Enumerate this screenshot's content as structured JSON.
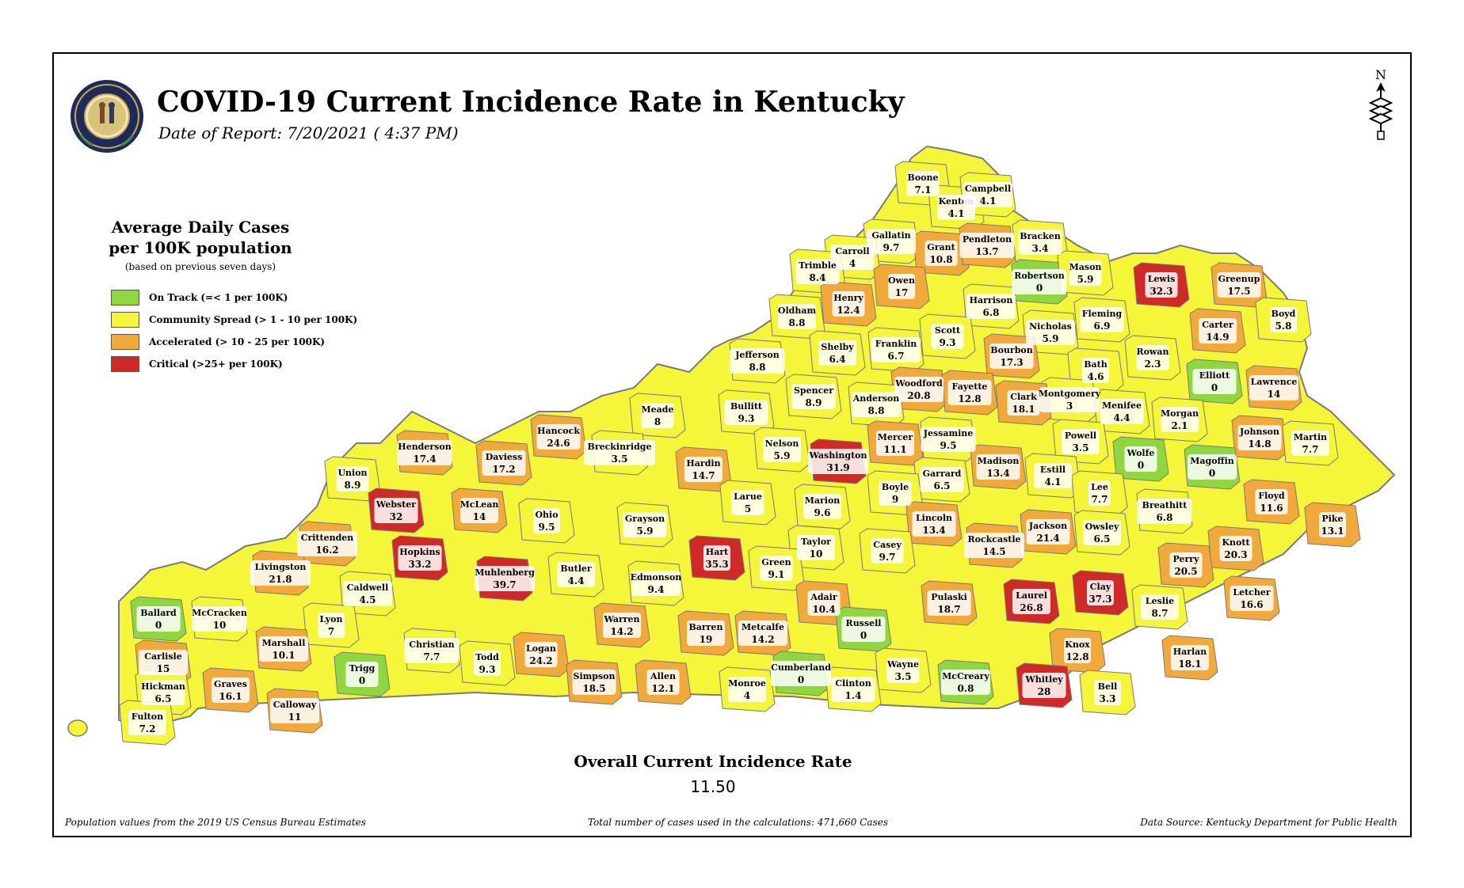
{
  "header": {
    "title": "COVID-19 Current Incidence Rate in Kentucky",
    "subtitle": "Date of Report: 7/20/2021 ( 4:37 PM)",
    "seal_text": "COMMONWEALTH OF KENTUCKY",
    "north_label": "N"
  },
  "legend": {
    "title_line1": "Average Daily Cases",
    "title_line2": "per 100K population",
    "note": "(based on previous seven days)",
    "items": [
      {
        "label": "On Track (=< 1 per 100K)",
        "color": "#8fd641"
      },
      {
        "label": "Community Spread (> 1 - 10 per 100K)",
        "color": "#f5f53a"
      },
      {
        "label": "Accelerated (> 10 - 25 per 100K)",
        "color": "#f2a93b"
      },
      {
        "label": "Critical (>25+ per 100K)",
        "color": "#cf2a27"
      }
    ]
  },
  "colors": {
    "on_track": "#8fd641",
    "community": "#f5f53a",
    "accelerated": "#f2a93b",
    "critical": "#cf2a27",
    "border": "#7a7a7a"
  },
  "counties": [
    {
      "name": "Boone",
      "value": "7.1"
    },
    {
      "name": "Kenton",
      "value": "4.1"
    },
    {
      "name": "Campbell",
      "value": "4.1"
    },
    {
      "name": "Gallatin",
      "value": "9.7"
    },
    {
      "name": "Grant",
      "value": "10.8"
    },
    {
      "name": "Pendleton",
      "value": "13.7"
    },
    {
      "name": "Bracken",
      "value": "3.4"
    },
    {
      "name": "Carroll",
      "value": "4"
    },
    {
      "name": "Trimble",
      "value": "8.4"
    },
    {
      "name": "Owen",
      "value": "17"
    },
    {
      "name": "Robertson",
      "value": "0"
    },
    {
      "name": "Mason",
      "value": "5.9"
    },
    {
      "name": "Lewis",
      "value": "32.3"
    },
    {
      "name": "Greenup",
      "value": "17.5"
    },
    {
      "name": "Henry",
      "value": "12.4"
    },
    {
      "name": "Harrison",
      "value": "6.8"
    },
    {
      "name": "Oldham",
      "value": "8.8"
    },
    {
      "name": "Fleming",
      "value": "6.9"
    },
    {
      "name": "Nicholas",
      "value": "5.9"
    },
    {
      "name": "Carter",
      "value": "14.9"
    },
    {
      "name": "Boyd",
      "value": "5.8"
    },
    {
      "name": "Scott",
      "value": "9.3"
    },
    {
      "name": "Franklin",
      "value": "6.7"
    },
    {
      "name": "Shelby",
      "value": "6.4"
    },
    {
      "name": "Bourbon",
      "value": "17.3"
    },
    {
      "name": "Rowan",
      "value": "2.3"
    },
    {
      "name": "Jefferson",
      "value": "8.8"
    },
    {
      "name": "Bath",
      "value": "4.6"
    },
    {
      "name": "Elliott",
      "value": "0"
    },
    {
      "name": "Woodford",
      "value": "20.8"
    },
    {
      "name": "Fayette",
      "value": "12.8"
    },
    {
      "name": "Spencer",
      "value": "8.9"
    },
    {
      "name": "Anderson",
      "value": "8.8"
    },
    {
      "name": "Montgomery",
      "value": "3"
    },
    {
      "name": "Lawrence",
      "value": "14"
    },
    {
      "name": "Clark",
      "value": "18.1"
    },
    {
      "name": "Bullitt",
      "value": "9.3"
    },
    {
      "name": "Meade",
      "value": "8"
    },
    {
      "name": "Menifee",
      "value": "4.4"
    },
    {
      "name": "Morgan",
      "value": "2.1"
    },
    {
      "name": "Hancock",
      "value": "24.6"
    },
    {
      "name": "Mercer",
      "value": "11.1"
    },
    {
      "name": "Jessamine",
      "value": "9.5"
    },
    {
      "name": "Johnson",
      "value": "14.8"
    },
    {
      "name": "Martin",
      "value": "7.7"
    },
    {
      "name": "Henderson",
      "value": "17.4"
    },
    {
      "name": "Daviess",
      "value": "17.2"
    },
    {
      "name": "Breckinridge",
      "value": "3.5"
    },
    {
      "name": "Nelson",
      "value": "5.9"
    },
    {
      "name": "Washington",
      "value": "31.9"
    },
    {
      "name": "Powell",
      "value": "3.5"
    },
    {
      "name": "Wolfe",
      "value": "0"
    },
    {
      "name": "Magoffin",
      "value": "0"
    },
    {
      "name": "Union",
      "value": "8.9"
    },
    {
      "name": "Hardin",
      "value": "14.7"
    },
    {
      "name": "Madison",
      "value": "13.4"
    },
    {
      "name": "Garrard",
      "value": "6.5"
    },
    {
      "name": "Estill",
      "value": "4.1"
    },
    {
      "name": "Boyle",
      "value": "9"
    },
    {
      "name": "Floyd",
      "value": "11.6"
    },
    {
      "name": "Webster",
      "value": "32"
    },
    {
      "name": "McLean",
      "value": "14"
    },
    {
      "name": "Lee",
      "value": "7.7"
    },
    {
      "name": "Breathitt",
      "value": "6.8"
    },
    {
      "name": "Larue",
      "value": "5"
    },
    {
      "name": "Marion",
      "value": "9.6"
    },
    {
      "name": "Ohio",
      "value": "9.5"
    },
    {
      "name": "Lincoln",
      "value": "13.4"
    },
    {
      "name": "Pike",
      "value": "13.1"
    },
    {
      "name": "Grayson",
      "value": "5.9"
    },
    {
      "name": "Jackson",
      "value": "21.4"
    },
    {
      "name": "Owsley",
      "value": "6.5"
    },
    {
      "name": "Crittenden",
      "value": "16.2"
    },
    {
      "name": "Rockcastle",
      "value": "14.5"
    },
    {
      "name": "Knott",
      "value": "20.3"
    },
    {
      "name": "Hopkins",
      "value": "33.2"
    },
    {
      "name": "Taylor",
      "value": "10"
    },
    {
      "name": "Casey",
      "value": "9.7"
    },
    {
      "name": "Hart",
      "value": "35.3"
    },
    {
      "name": "Livingston",
      "value": "21.8"
    },
    {
      "name": "Perry",
      "value": "20.5"
    },
    {
      "name": "Muhlenberg",
      "value": "39.7"
    },
    {
      "name": "Green",
      "value": "9.1"
    },
    {
      "name": "Caldwell",
      "value": "4.5"
    },
    {
      "name": "Butler",
      "value": "4.4"
    },
    {
      "name": "Edmonson",
      "value": "9.4"
    },
    {
      "name": "Clay",
      "value": "37.3"
    },
    {
      "name": "Laurel",
      "value": "26.8"
    },
    {
      "name": "Letcher",
      "value": "16.6"
    },
    {
      "name": "Pulaski",
      "value": "18.7"
    },
    {
      "name": "Leslie",
      "value": "8.7"
    },
    {
      "name": "Adair",
      "value": "10.4"
    },
    {
      "name": "Ballard",
      "value": "0"
    },
    {
      "name": "McCracken",
      "value": "10"
    },
    {
      "name": "Lyon",
      "value": "7"
    },
    {
      "name": "Warren",
      "value": "14.2"
    },
    {
      "name": "Russell",
      "value": "0"
    },
    {
      "name": "Barren",
      "value": "19"
    },
    {
      "name": "Metcalfe",
      "value": "14.2"
    },
    {
      "name": "Knox",
      "value": "12.8"
    },
    {
      "name": "Christian",
      "value": "7.7"
    },
    {
      "name": "Marshall",
      "value": "10.1"
    },
    {
      "name": "Logan",
      "value": "24.2"
    },
    {
      "name": "Harlan",
      "value": "18.1"
    },
    {
      "name": "Carlisle",
      "value": "15"
    },
    {
      "name": "Todd",
      "value": "9.3"
    },
    {
      "name": "Trigg",
      "value": "0"
    },
    {
      "name": "Wayne",
      "value": "3.5"
    },
    {
      "name": "Cumberland",
      "value": "0"
    },
    {
      "name": "Simpson",
      "value": "18.5"
    },
    {
      "name": "Allen",
      "value": "12.1"
    },
    {
      "name": "McCreary",
      "value": "0.8"
    },
    {
      "name": "Whitley",
      "value": "28"
    },
    {
      "name": "Graves",
      "value": "16.1"
    },
    {
      "name": "Hickman",
      "value": "6.5"
    },
    {
      "name": "Monroe",
      "value": "4"
    },
    {
      "name": "Clinton",
      "value": "1.4"
    },
    {
      "name": "Bell",
      "value": "3.3"
    },
    {
      "name": "Calloway",
      "value": "11"
    },
    {
      "name": "Fulton",
      "value": "7.2"
    }
  ],
  "overall": {
    "label": "Overall Current Incidence Rate",
    "value": "11.50"
  },
  "footer": {
    "left": "Population values from the 2019 US Census Bureau Estimates",
    "center": "Total number of cases used in the calculations: 471,660 Cases",
    "right": "Data Source: Kentucky Department for Public Health"
  }
}
